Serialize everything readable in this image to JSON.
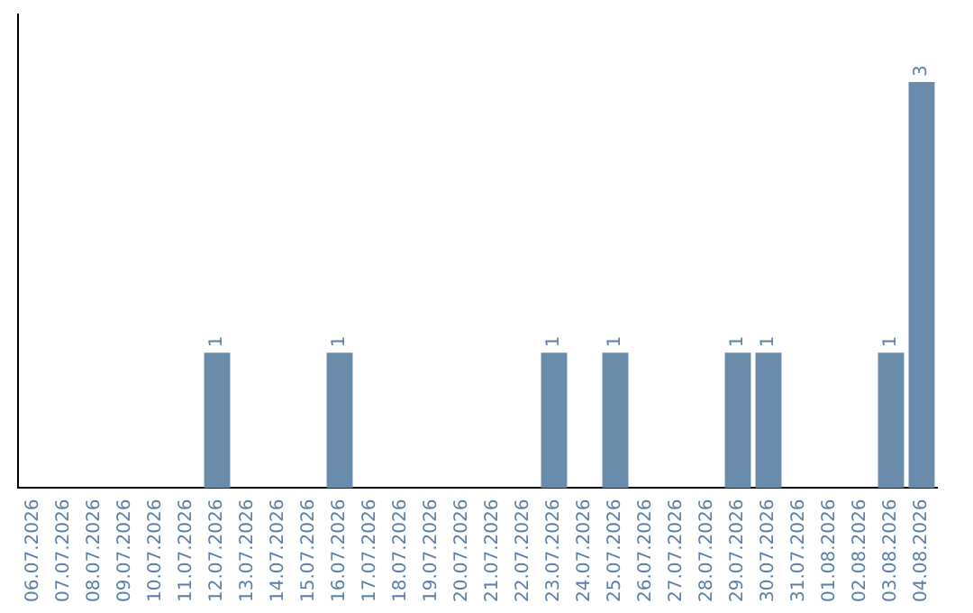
{
  "chart_data": {
    "type": "bar",
    "categories": [
      "06.07.2026",
      "07.07.2026",
      "08.07.2026",
      "09.07.2026",
      "10.07.2026",
      "11.07.2026",
      "12.07.2026",
      "13.07.2026",
      "14.07.2026",
      "15.07.2026",
      "16.07.2026",
      "17.07.2026",
      "18.07.2026",
      "19.07.2026",
      "20.07.2026",
      "21.07.2026",
      "22.07.2026",
      "23.07.2026",
      "24.07.2026",
      "25.07.2026",
      "26.07.2026",
      "27.07.2026",
      "28.07.2026",
      "29.07.2026",
      "30.07.2026",
      "31.07.2026",
      "01.08.2026",
      "02.08.2026",
      "03.08.2026",
      "04.08.2026"
    ],
    "values": [
      0,
      0,
      0,
      0,
      0,
      0,
      1,
      0,
      0,
      0,
      1,
      0,
      0,
      0,
      0,
      0,
      0,
      1,
      0,
      1,
      0,
      0,
      0,
      1,
      1,
      0,
      0,
      0,
      1,
      3
    ],
    "value_labels": [
      null,
      null,
      null,
      null,
      null,
      null,
      "1",
      null,
      null,
      null,
      "1",
      null,
      null,
      null,
      null,
      null,
      null,
      "1",
      null,
      "1",
      null,
      null,
      null,
      "1",
      "1",
      null,
      null,
      null,
      "1",
      "3"
    ],
    "color": "#6a8cac",
    "grid": false,
    "legend": false,
    "tick_labels": "x"
  }
}
